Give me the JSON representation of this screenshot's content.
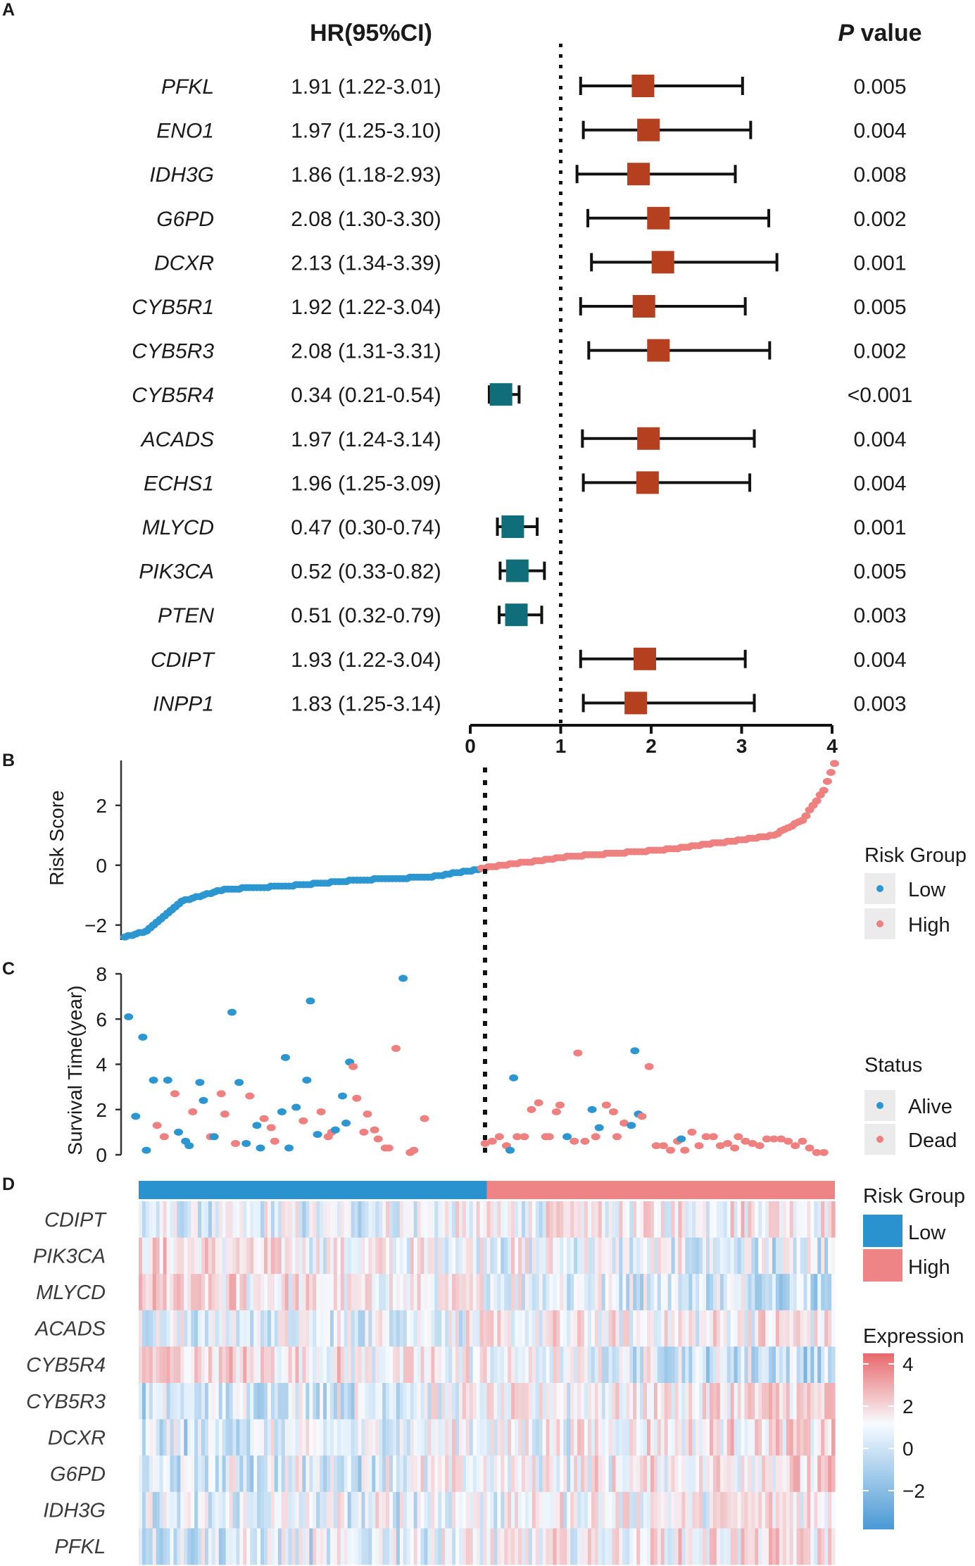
{
  "colors": {
    "hr_high": "#b5401f",
    "hr_low": "#0f6e7a",
    "low": "#2c96d1",
    "high": "#ef8080",
    "bar_low": "#2a92cf",
    "bar_high": "#ee8485",
    "scale_pos": "#e8696b",
    "scale_neg": "#4a98d4"
  },
  "panel_letters": [
    "A",
    "B",
    "C",
    "D"
  ],
  "chart_data": [
    {
      "type": "forest",
      "panel": "A",
      "header_hr": "HR(95%CI)",
      "header_p_italic": "P",
      "header_p_rest": " value",
      "reference_line": 1,
      "xlim": [
        0,
        4
      ],
      "xticks": [
        "0",
        "1",
        "2",
        "3",
        "4"
      ],
      "rows": [
        {
          "gene": "PFKL",
          "hr": 1.91,
          "lo": 1.22,
          "hi": 3.01,
          "label": "1.91 (1.22-3.01)",
          "p": "0.005"
        },
        {
          "gene": "ENO1",
          "hr": 1.97,
          "lo": 1.25,
          "hi": 3.1,
          "label": "1.97 (1.25-3.10)",
          "p": "0.004"
        },
        {
          "gene": "IDH3G",
          "hr": 1.86,
          "lo": 1.18,
          "hi": 2.93,
          "label": "1.86 (1.18-2.93)",
          "p": "0.008"
        },
        {
          "gene": "G6PD",
          "hr": 2.08,
          "lo": 1.3,
          "hi": 3.3,
          "label": "2.08 (1.30-3.30)",
          "p": "0.002"
        },
        {
          "gene": "DCXR",
          "hr": 2.13,
          "lo": 1.34,
          "hi": 3.39,
          "label": "2.13 (1.34-3.39)",
          "p": "0.001"
        },
        {
          "gene": "CYB5R1",
          "hr": 1.92,
          "lo": 1.22,
          "hi": 3.04,
          "label": "1.92 (1.22-3.04)",
          "p": "0.005"
        },
        {
          "gene": "CYB5R3",
          "hr": 2.08,
          "lo": 1.31,
          "hi": 3.31,
          "label": "2.08 (1.31-3.31)",
          "p": "0.002"
        },
        {
          "gene": "CYB5R4",
          "hr": 0.34,
          "lo": 0.21,
          "hi": 0.54,
          "label": "0.34 (0.21-0.54)",
          "p": "<0.001"
        },
        {
          "gene": "ACADS",
          "hr": 1.97,
          "lo": 1.24,
          "hi": 3.14,
          "label": "1.97 (1.24-3.14)",
          "p": "0.004"
        },
        {
          "gene": "ECHS1",
          "hr": 1.96,
          "lo": 1.25,
          "hi": 3.09,
          "label": "1.96 (1.25-3.09)",
          "p": "0.004"
        },
        {
          "gene": "MLYCD",
          "hr": 0.47,
          "lo": 0.3,
          "hi": 0.74,
          "label": "0.47 (0.30-0.74)",
          "p": "0.001"
        },
        {
          "gene": "PIK3CA",
          "hr": 0.52,
          "lo": 0.33,
          "hi": 0.82,
          "label": "0.52 (0.33-0.82)",
          "p": "0.005"
        },
        {
          "gene": "PTEN",
          "hr": 0.51,
          "lo": 0.32,
          "hi": 0.79,
          "label": "0.51 (0.32-0.79)",
          "p": "0.003"
        },
        {
          "gene": "CDIPT",
          "hr": 1.93,
          "lo": 1.22,
          "hi": 3.04,
          "label": "1.93 (1.22-3.04)",
          "p": "0.004"
        },
        {
          "gene": "INPP1",
          "hr": 1.83,
          "lo": 1.25,
          "hi": 3.14,
          "label": "1.83 (1.25-3.14)",
          "p": "0.003"
        }
      ]
    },
    {
      "type": "scatter",
      "panel": "B",
      "ylabel": "Risk Score",
      "ylim": [
        -2.5,
        3.5
      ],
      "yticks": [
        "2",
        "0",
        "−2"
      ],
      "n_samples": 200,
      "n_low": 100,
      "risk_curve": [
        {
          "rank": 0,
          "score": -2.4
        },
        {
          "rank": 6,
          "score": -2.2
        },
        {
          "rank": 12,
          "score": -1.6
        },
        {
          "rank": 16,
          "score": -1.2
        },
        {
          "rank": 22,
          "score": -1.0
        },
        {
          "rank": 28,
          "score": -0.8
        },
        {
          "rank": 45,
          "score": -0.7
        },
        {
          "rank": 65,
          "score": -0.5
        },
        {
          "rank": 85,
          "score": -0.4
        },
        {
          "rank": 99,
          "score": -0.15
        },
        {
          "rank": 100,
          "score": -0.1
        },
        {
          "rank": 125,
          "score": 0.3
        },
        {
          "rank": 150,
          "score": 0.5
        },
        {
          "rank": 170,
          "score": 0.8
        },
        {
          "rank": 182,
          "score": 1.0
        },
        {
          "rank": 190,
          "score": 1.5
        },
        {
          "rank": 196,
          "score": 2.5
        },
        {
          "rank": 199,
          "score": 3.4
        }
      ],
      "legend_title": "Risk Group",
      "legend_items": [
        "Low",
        "High"
      ]
    },
    {
      "type": "scatter",
      "panel": "C",
      "ylabel": "Survival Time(year)",
      "ylim": [
        0,
        8
      ],
      "yticks": [
        "8",
        "6",
        "4",
        "2",
        "0"
      ],
      "legend_title": "Status",
      "legend_items": [
        "Alive",
        "Dead"
      ],
      "points": [
        {
          "rank": 1,
          "years": 6.1,
          "status": "Alive"
        },
        {
          "rank": 3,
          "years": 1.7,
          "status": "Alive"
        },
        {
          "rank": 5,
          "years": 5.2,
          "status": "Alive"
        },
        {
          "rank": 6,
          "years": 0.2,
          "status": "Alive"
        },
        {
          "rank": 8,
          "years": 3.3,
          "status": "Alive"
        },
        {
          "rank": 9,
          "years": 1.3,
          "status": "Dead"
        },
        {
          "rank": 11,
          "years": 0.8,
          "status": "Dead"
        },
        {
          "rank": 12,
          "years": 3.3,
          "status": "Alive"
        },
        {
          "rank": 14,
          "years": 2.7,
          "status": "Dead"
        },
        {
          "rank": 15,
          "years": 1.0,
          "status": "Alive"
        },
        {
          "rank": 17,
          "years": 0.6,
          "status": "Alive"
        },
        {
          "rank": 18,
          "years": 0.4,
          "status": "Alive"
        },
        {
          "rank": 19,
          "years": 1.9,
          "status": "Dead"
        },
        {
          "rank": 21,
          "years": 3.2,
          "status": "Alive"
        },
        {
          "rank": 22,
          "years": 2.4,
          "status": "Alive"
        },
        {
          "rank": 24,
          "years": 0.8,
          "status": "Dead"
        },
        {
          "rank": 25,
          "years": 0.8,
          "status": "Alive"
        },
        {
          "rank": 27,
          "years": 2.7,
          "status": "Dead"
        },
        {
          "rank": 28,
          "years": 1.8,
          "status": "Dead"
        },
        {
          "rank": 30,
          "years": 6.3,
          "status": "Alive"
        },
        {
          "rank": 31,
          "years": 0.5,
          "status": "Dead"
        },
        {
          "rank": 32,
          "years": 3.2,
          "status": "Alive"
        },
        {
          "rank": 34,
          "years": 0.5,
          "status": "Alive"
        },
        {
          "rank": 35,
          "years": 2.6,
          "status": "Dead"
        },
        {
          "rank": 37,
          "years": 1.3,
          "status": "Alive"
        },
        {
          "rank": 38,
          "years": 0.3,
          "status": "Alive"
        },
        {
          "rank": 39,
          "years": 1.6,
          "status": "Dead"
        },
        {
          "rank": 41,
          "years": 1.2,
          "status": "Dead"
        },
        {
          "rank": 42,
          "years": 0.6,
          "status": "Dead"
        },
        {
          "rank": 44,
          "years": 1.9,
          "status": "Alive"
        },
        {
          "rank": 45,
          "years": 4.3,
          "status": "Alive"
        },
        {
          "rank": 46,
          "years": 0.3,
          "status": "Alive"
        },
        {
          "rank": 48,
          "years": 2.1,
          "status": "Alive"
        },
        {
          "rank": 50,
          "years": 1.5,
          "status": "Dead"
        },
        {
          "rank": 51,
          "years": 3.3,
          "status": "Alive"
        },
        {
          "rank": 52,
          "years": 6.8,
          "status": "Alive"
        },
        {
          "rank": 54,
          "years": 0.9,
          "status": "Alive"
        },
        {
          "rank": 55,
          "years": 1.9,
          "status": "Dead"
        },
        {
          "rank": 57,
          "years": 0.8,
          "status": "Dead"
        },
        {
          "rank": 58,
          "years": 1.0,
          "status": "Dead"
        },
        {
          "rank": 59,
          "years": 1.1,
          "status": "Alive"
        },
        {
          "rank": 61,
          "years": 2.6,
          "status": "Alive"
        },
        {
          "rank": 62,
          "years": 1.4,
          "status": "Alive"
        },
        {
          "rank": 63,
          "years": 4.1,
          "status": "Alive"
        },
        {
          "rank": 64,
          "years": 3.9,
          "status": "Dead"
        },
        {
          "rank": 65,
          "years": 2.5,
          "status": "Dead"
        },
        {
          "rank": 67,
          "years": 1.0,
          "status": "Dead"
        },
        {
          "rank": 68,
          "years": 1.8,
          "status": "Dead"
        },
        {
          "rank": 70,
          "years": 1.1,
          "status": "Dead"
        },
        {
          "rank": 71,
          "years": 0.7,
          "status": "Dead"
        },
        {
          "rank": 73,
          "years": 0.3,
          "status": "Dead"
        },
        {
          "rank": 74,
          "years": 0.3,
          "status": "Dead"
        },
        {
          "rank": 76,
          "years": 4.7,
          "status": "Dead"
        },
        {
          "rank": 78,
          "years": 7.8,
          "status": "Alive"
        },
        {
          "rank": 80,
          "years": 0.1,
          "status": "Dead"
        },
        {
          "rank": 81,
          "years": 0.2,
          "status": "Dead"
        },
        {
          "rank": 84,
          "years": 1.6,
          "status": "Dead"
        },
        {
          "rank": 101,
          "years": 0.5,
          "status": "Dead"
        },
        {
          "rank": 103,
          "years": 0.6,
          "status": "Dead"
        },
        {
          "rank": 105,
          "years": 0.8,
          "status": "Dead"
        },
        {
          "rank": 107,
          "years": 0.4,
          "status": "Dead"
        },
        {
          "rank": 108,
          "years": 0.2,
          "status": "Alive"
        },
        {
          "rank": 109,
          "years": 3.4,
          "status": "Alive"
        },
        {
          "rank": 110,
          "years": 0.8,
          "status": "Dead"
        },
        {
          "rank": 112,
          "years": 0.8,
          "status": "Dead"
        },
        {
          "rank": 114,
          "years": 2.0,
          "status": "Dead"
        },
        {
          "rank": 116,
          "years": 2.3,
          "status": "Dead"
        },
        {
          "rank": 118,
          "years": 0.8,
          "status": "Dead"
        },
        {
          "rank": 119,
          "years": 0.8,
          "status": "Dead"
        },
        {
          "rank": 121,
          "years": 1.9,
          "status": "Dead"
        },
        {
          "rank": 122,
          "years": 2.2,
          "status": "Dead"
        },
        {
          "rank": 124,
          "years": 0.8,
          "status": "Alive"
        },
        {
          "rank": 126,
          "years": 0.6,
          "status": "Dead"
        },
        {
          "rank": 127,
          "years": 4.5,
          "status": "Dead"
        },
        {
          "rank": 129,
          "years": 0.6,
          "status": "Dead"
        },
        {
          "rank": 131,
          "years": 2.0,
          "status": "Alive"
        },
        {
          "rank": 132,
          "years": 0.8,
          "status": "Dead"
        },
        {
          "rank": 133,
          "years": 1.2,
          "status": "Alive"
        },
        {
          "rank": 135,
          "years": 2.2,
          "status": "Dead"
        },
        {
          "rank": 137,
          "years": 1.9,
          "status": "Dead"
        },
        {
          "rank": 138,
          "years": 0.8,
          "status": "Dead"
        },
        {
          "rank": 140,
          "years": 1.4,
          "status": "Dead"
        },
        {
          "rank": 142,
          "years": 1.3,
          "status": "Alive"
        },
        {
          "rank": 143,
          "years": 4.6,
          "status": "Alive"
        },
        {
          "rank": 144,
          "years": 1.8,
          "status": "Alive"
        },
        {
          "rank": 145,
          "years": 1.7,
          "status": "Dead"
        },
        {
          "rank": 147,
          "years": 3.9,
          "status": "Dead"
        },
        {
          "rank": 149,
          "years": 0.4,
          "status": "Dead"
        },
        {
          "rank": 151,
          "years": 0.4,
          "status": "Dead"
        },
        {
          "rank": 153,
          "years": 0.2,
          "status": "Dead"
        },
        {
          "rank": 155,
          "years": 0.6,
          "status": "Dead"
        },
        {
          "rank": 156,
          "years": 0.7,
          "status": "Alive"
        },
        {
          "rank": 157,
          "years": 0.2,
          "status": "Dead"
        },
        {
          "rank": 159,
          "years": 1.0,
          "status": "Dead"
        },
        {
          "rank": 161,
          "years": 0.4,
          "status": "Dead"
        },
        {
          "rank": 163,
          "years": 0.8,
          "status": "Dead"
        },
        {
          "rank": 165,
          "years": 0.8,
          "status": "Dead"
        },
        {
          "rank": 167,
          "years": 0.4,
          "status": "Dead"
        },
        {
          "rank": 169,
          "years": 0.5,
          "status": "Dead"
        },
        {
          "rank": 171,
          "years": 0.3,
          "status": "Dead"
        },
        {
          "rank": 172,
          "years": 0.8,
          "status": "Dead"
        },
        {
          "rank": 174,
          "years": 0.6,
          "status": "Dead"
        },
        {
          "rank": 176,
          "years": 0.5,
          "status": "Dead"
        },
        {
          "rank": 178,
          "years": 0.4,
          "status": "Dead"
        },
        {
          "rank": 180,
          "years": 0.7,
          "status": "Dead"
        },
        {
          "rank": 182,
          "years": 0.7,
          "status": "Dead"
        },
        {
          "rank": 184,
          "years": 0.7,
          "status": "Dead"
        },
        {
          "rank": 186,
          "years": 0.6,
          "status": "Dead"
        },
        {
          "rank": 188,
          "years": 0.4,
          "status": "Dead"
        },
        {
          "rank": 190,
          "years": 0.6,
          "status": "Dead"
        },
        {
          "rank": 192,
          "years": 0.3,
          "status": "Dead"
        },
        {
          "rank": 194,
          "years": 0.1,
          "status": "Dead"
        },
        {
          "rank": 196,
          "years": 0.1,
          "status": "Dead"
        }
      ]
    },
    {
      "type": "heatmap",
      "panel": "D",
      "rows": [
        "CDIPT",
        "PIK3CA",
        "MLYCD",
        "ACADS",
        "CYB5R4",
        "CYB5R3",
        "DCXR",
        "G6PD",
        "IDH3G",
        "PFKL"
      ],
      "n_columns": 200,
      "n_low": 100,
      "row_trend": [
        0.35,
        -0.35,
        -0.45,
        0.3,
        -0.55,
        0.5,
        0.45,
        0.45,
        0.35,
        0.4
      ],
      "legend_group_title": "Risk Group",
      "legend_group_items": [
        "Low",
        "High"
      ],
      "legend_expr_title": "Expression",
      "legend_expr_ticks": [
        "4",
        "2",
        "0",
        "−2"
      ],
      "value_range": [
        -3,
        4
      ]
    }
  ]
}
